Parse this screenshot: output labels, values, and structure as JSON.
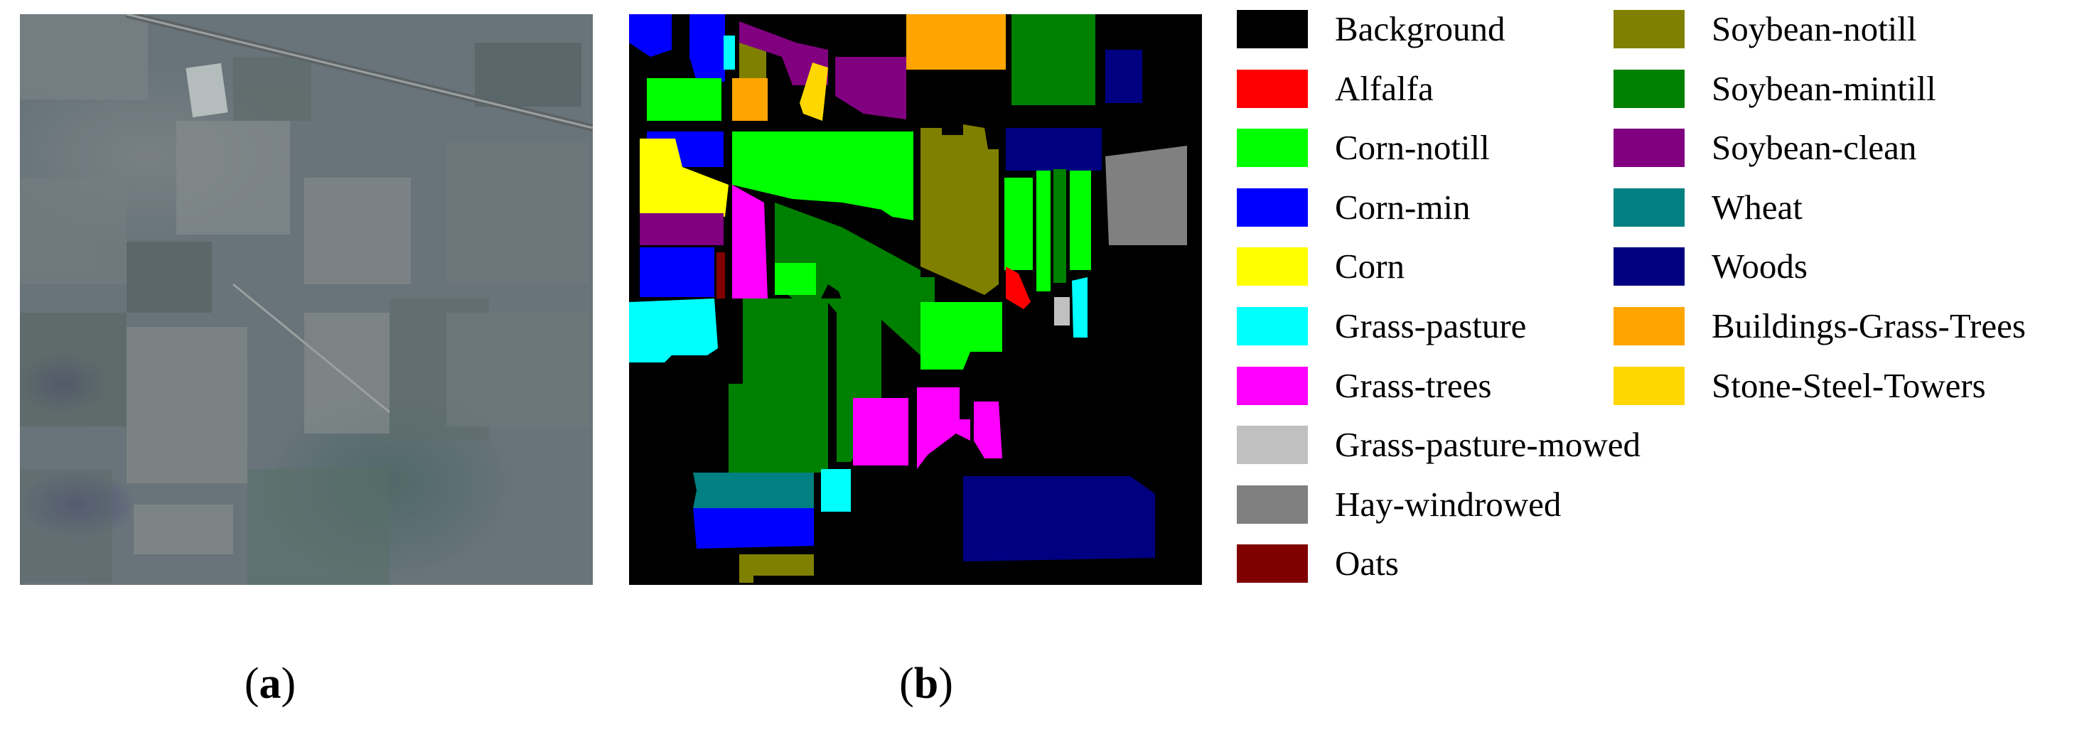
{
  "captions": {
    "a": {
      "open": "(",
      "letter": "a",
      "close": ")"
    },
    "b": {
      "open": "(",
      "letter": "b",
      "close": ")"
    }
  },
  "legend": [
    {
      "label": "Background",
      "color": "#000000"
    },
    {
      "label": "Alfalfa",
      "color": "#ff0000"
    },
    {
      "label": "Corn-notill",
      "color": "#00ff00"
    },
    {
      "label": "Corn-min",
      "color": "#0000ff"
    },
    {
      "label": "Corn",
      "color": "#ffff00"
    },
    {
      "label": "Grass-pasture",
      "color": "#00ffff"
    },
    {
      "label": "Grass-trees",
      "color": "#ff00ff"
    },
    {
      "label": "Grass-pasture-mowed",
      "color": "#c0c0c0"
    },
    {
      "label": "Hay-windrowed",
      "color": "#808080"
    },
    {
      "label": "Oats",
      "color": "#800000"
    },
    {
      "label": "Soybean-notill",
      "color": "#808000"
    },
    {
      "label": "Soybean-mintill",
      "color": "#008000"
    },
    {
      "label": "Soybean-clean",
      "color": "#800080"
    },
    {
      "label": "Wheat",
      "color": "#008080"
    },
    {
      "label": "Woods",
      "color": "#000080"
    },
    {
      "label": "Buildings-Grass-Trees",
      "color": "#ffa500"
    },
    {
      "label": "Stone-Steel-Towers",
      "color": "#ffd700"
    }
  ]
}
